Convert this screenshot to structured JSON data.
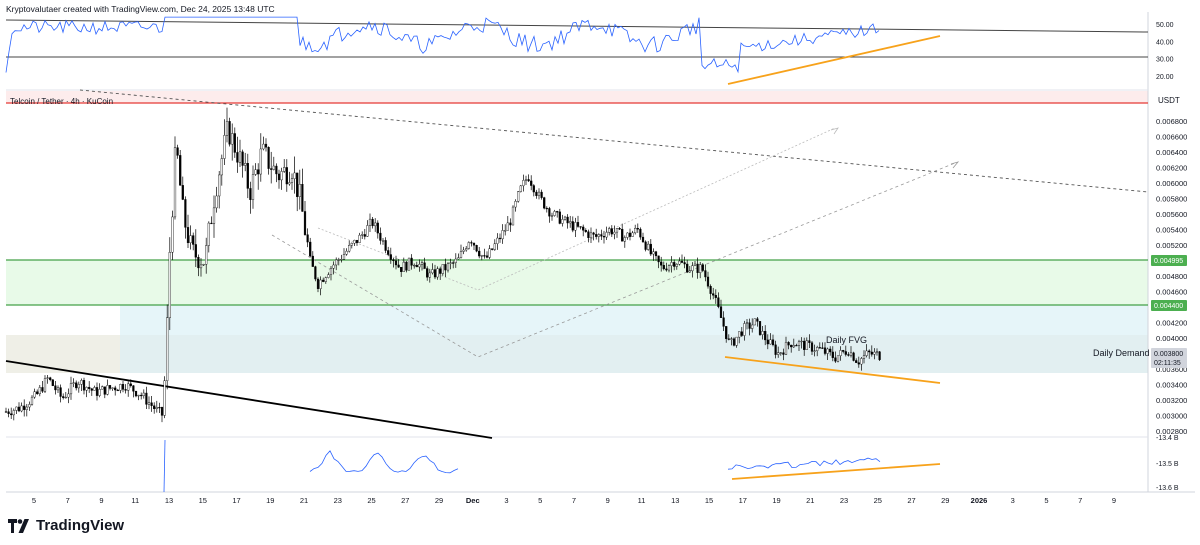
{
  "header": {
    "text": "Kryptovalutaer created with TradingView.com, Dec 24, 2025 13:48 UTC"
  },
  "symbol": {
    "text": "Telcoin / Tether · 4h · KuCoin"
  },
  "brand": {
    "name": "TradingView"
  },
  "chart_data": {
    "type": "candlestick",
    "pair": "Telcoin / Tether",
    "interval": "4h",
    "exchange": "KuCoin",
    "currency": "USDT",
    "price_axis": {
      "range": [
        0.0027,
        0.0071
      ],
      "ticks": [
        "0.006800",
        "0.006600",
        "0.006400",
        "0.006200",
        "0.006000",
        "0.005800",
        "0.005600",
        "0.005400",
        "0.005200",
        "0.004800",
        "0.004600",
        "0.004200",
        "0.004000",
        "0.003600",
        "0.003400",
        "0.003200",
        "0.003000",
        "0.002800"
      ]
    },
    "time_axis": {
      "labels": [
        "5",
        "7",
        "9",
        "11",
        "13",
        "15",
        "17",
        "19",
        "21",
        "23",
        "25",
        "27",
        "29",
        "Dec",
        "3",
        "5",
        "7",
        "9",
        "11",
        "13",
        "15",
        "17",
        "19",
        "21",
        "23",
        "25",
        "27",
        "29",
        "2026",
        "3",
        "5",
        "7",
        "9"
      ]
    },
    "price_labels": [
      {
        "value": "0.004995",
        "color": "#4caf50"
      },
      {
        "value": "0.004400",
        "color": "#4caf50"
      },
      {
        "value": "0.003800",
        "color": "#c9cdd6",
        "sub": "02:11:35"
      }
    ],
    "zones": [
      {
        "name": "Daily FVG",
        "from": 0.0044,
        "to": 0.004995,
        "color": "#e6f9e6"
      },
      {
        "name": "Daily Demand",
        "from": 0.00355,
        "to": 0.0044,
        "color": "#e4f4f8"
      }
    ],
    "annotations": [
      "Daily FVG",
      "Daily Demand"
    ],
    "horizontal_lines": [
      {
        "value": 0.006935,
        "color": "#e53935"
      },
      {
        "value": 0.004995,
        "color": "#43a047"
      },
      {
        "value": 0.0044,
        "color": "#43a047"
      }
    ],
    "last_price": 0.0038,
    "countdown": "02:11:35",
    "oscillator": {
      "ticks": [
        "50.00",
        "40.00",
        "30.00",
        "20.00"
      ],
      "range": [
        15,
        55
      ]
    },
    "volume_indicator": {
      "ticks": [
        "-13.4 B",
        "-13.5 B",
        "-13.6 B"
      ]
    }
  }
}
